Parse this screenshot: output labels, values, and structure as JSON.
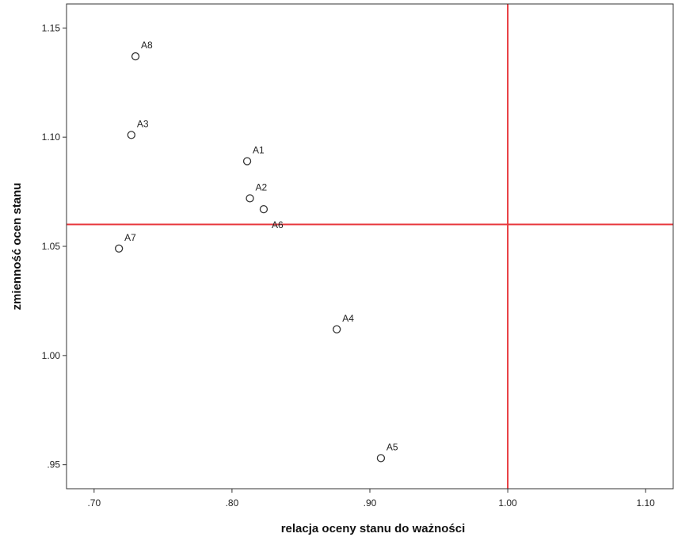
{
  "chart_data": {
    "type": "scatter",
    "title": "",
    "xlabel": "relacja oceny stanu do ważności",
    "ylabel": "zmienność ocen stanu",
    "xlim": [
      0.68,
      1.12
    ],
    "ylim": [
      0.939,
      1.161
    ],
    "x_ticks": [
      {
        "value": 0.7,
        "label": ".70"
      },
      {
        "value": 0.8,
        "label": ".80"
      },
      {
        "value": 0.9,
        "label": ".90"
      },
      {
        "value": 1.0,
        "label": "1.00"
      },
      {
        "value": 1.1,
        "label": "1.10"
      }
    ],
    "y_ticks": [
      {
        "value": 0.95,
        "label": ".95"
      },
      {
        "value": 1.0,
        "label": "1.00"
      },
      {
        "value": 1.05,
        "label": "1.05"
      },
      {
        "value": 1.1,
        "label": "1.10"
      },
      {
        "value": 1.15,
        "label": "1.15"
      }
    ],
    "grid": false,
    "legend": "none",
    "points": [
      {
        "label": "A1",
        "x": 0.811,
        "y": 1.089
      },
      {
        "label": "A2",
        "x": 0.813,
        "y": 1.072
      },
      {
        "label": "A3",
        "x": 0.727,
        "y": 1.101
      },
      {
        "label": "A4",
        "x": 0.876,
        "y": 1.012
      },
      {
        "label": "A5",
        "x": 0.908,
        "y": 0.953
      },
      {
        "label": "A6",
        "x": 0.823,
        "y": 1.067
      },
      {
        "label": "A7",
        "x": 0.718,
        "y": 1.049
      },
      {
        "label": "A8",
        "x": 0.73,
        "y": 1.137
      }
    ],
    "reference_lines": {
      "x": 1.0,
      "y": 1.06,
      "color": "#e8383d"
    },
    "marker": {
      "shape": "circle",
      "filled": false,
      "color": "#333333"
    }
  }
}
